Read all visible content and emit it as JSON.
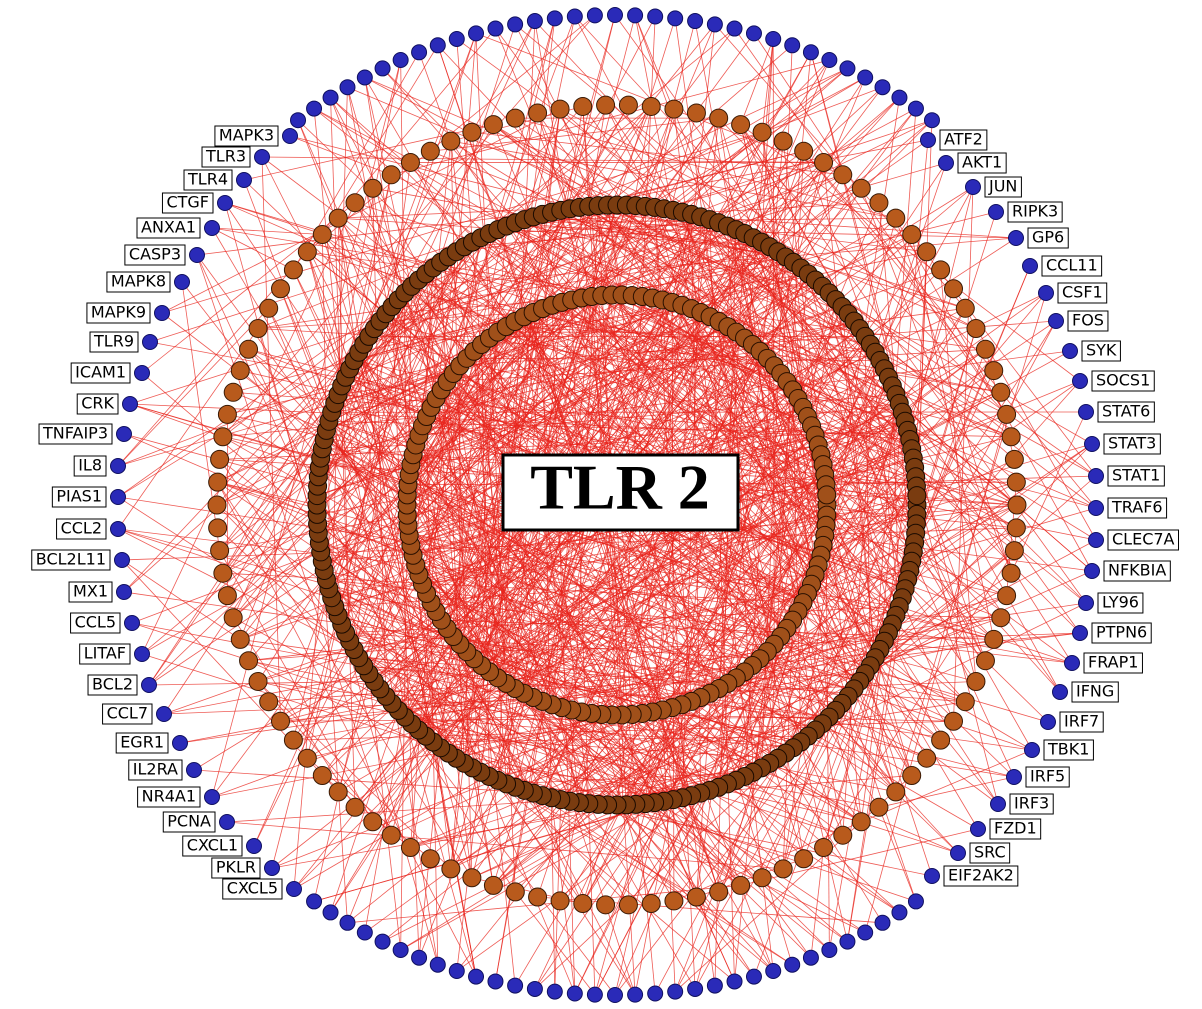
{
  "title": "TLR 2",
  "left_nodes": [
    "MAPK3",
    "TLR3",
    "TLR4",
    "CTGF",
    "ANXA1",
    "CASP3",
    "MAPK8",
    "MAPK9",
    "TLR9",
    "ICAM1",
    "CRK",
    "TNFAIP3",
    "IL8",
    "PIAS1",
    "CCL2",
    "BCL2L11",
    "MX1",
    "CCL5",
    "LITAF",
    "BCL2",
    "CCL7",
    "EGR1",
    "IL2RA",
    "NR4A1",
    "PCNA",
    "CXCL1",
    "PKLR",
    "CXCL5"
  ],
  "right_nodes": [
    "ATF2",
    "AKT1",
    "JUN",
    "RIPK3",
    "GP6",
    "CCL11",
    "CSF1",
    "FOS",
    "SYK",
    "SOCS1",
    "STAT6",
    "STAT3",
    "STAT1",
    "TRAF6",
    "CLEC7A",
    "NFKBIA",
    "LY96",
    "PTPN6",
    "FRAP1",
    "IFNG",
    "IRF7",
    "TBK1",
    "IRF5",
    "IRF3",
    "FZD1",
    "SRC",
    "EIF2AK2"
  ]
}
